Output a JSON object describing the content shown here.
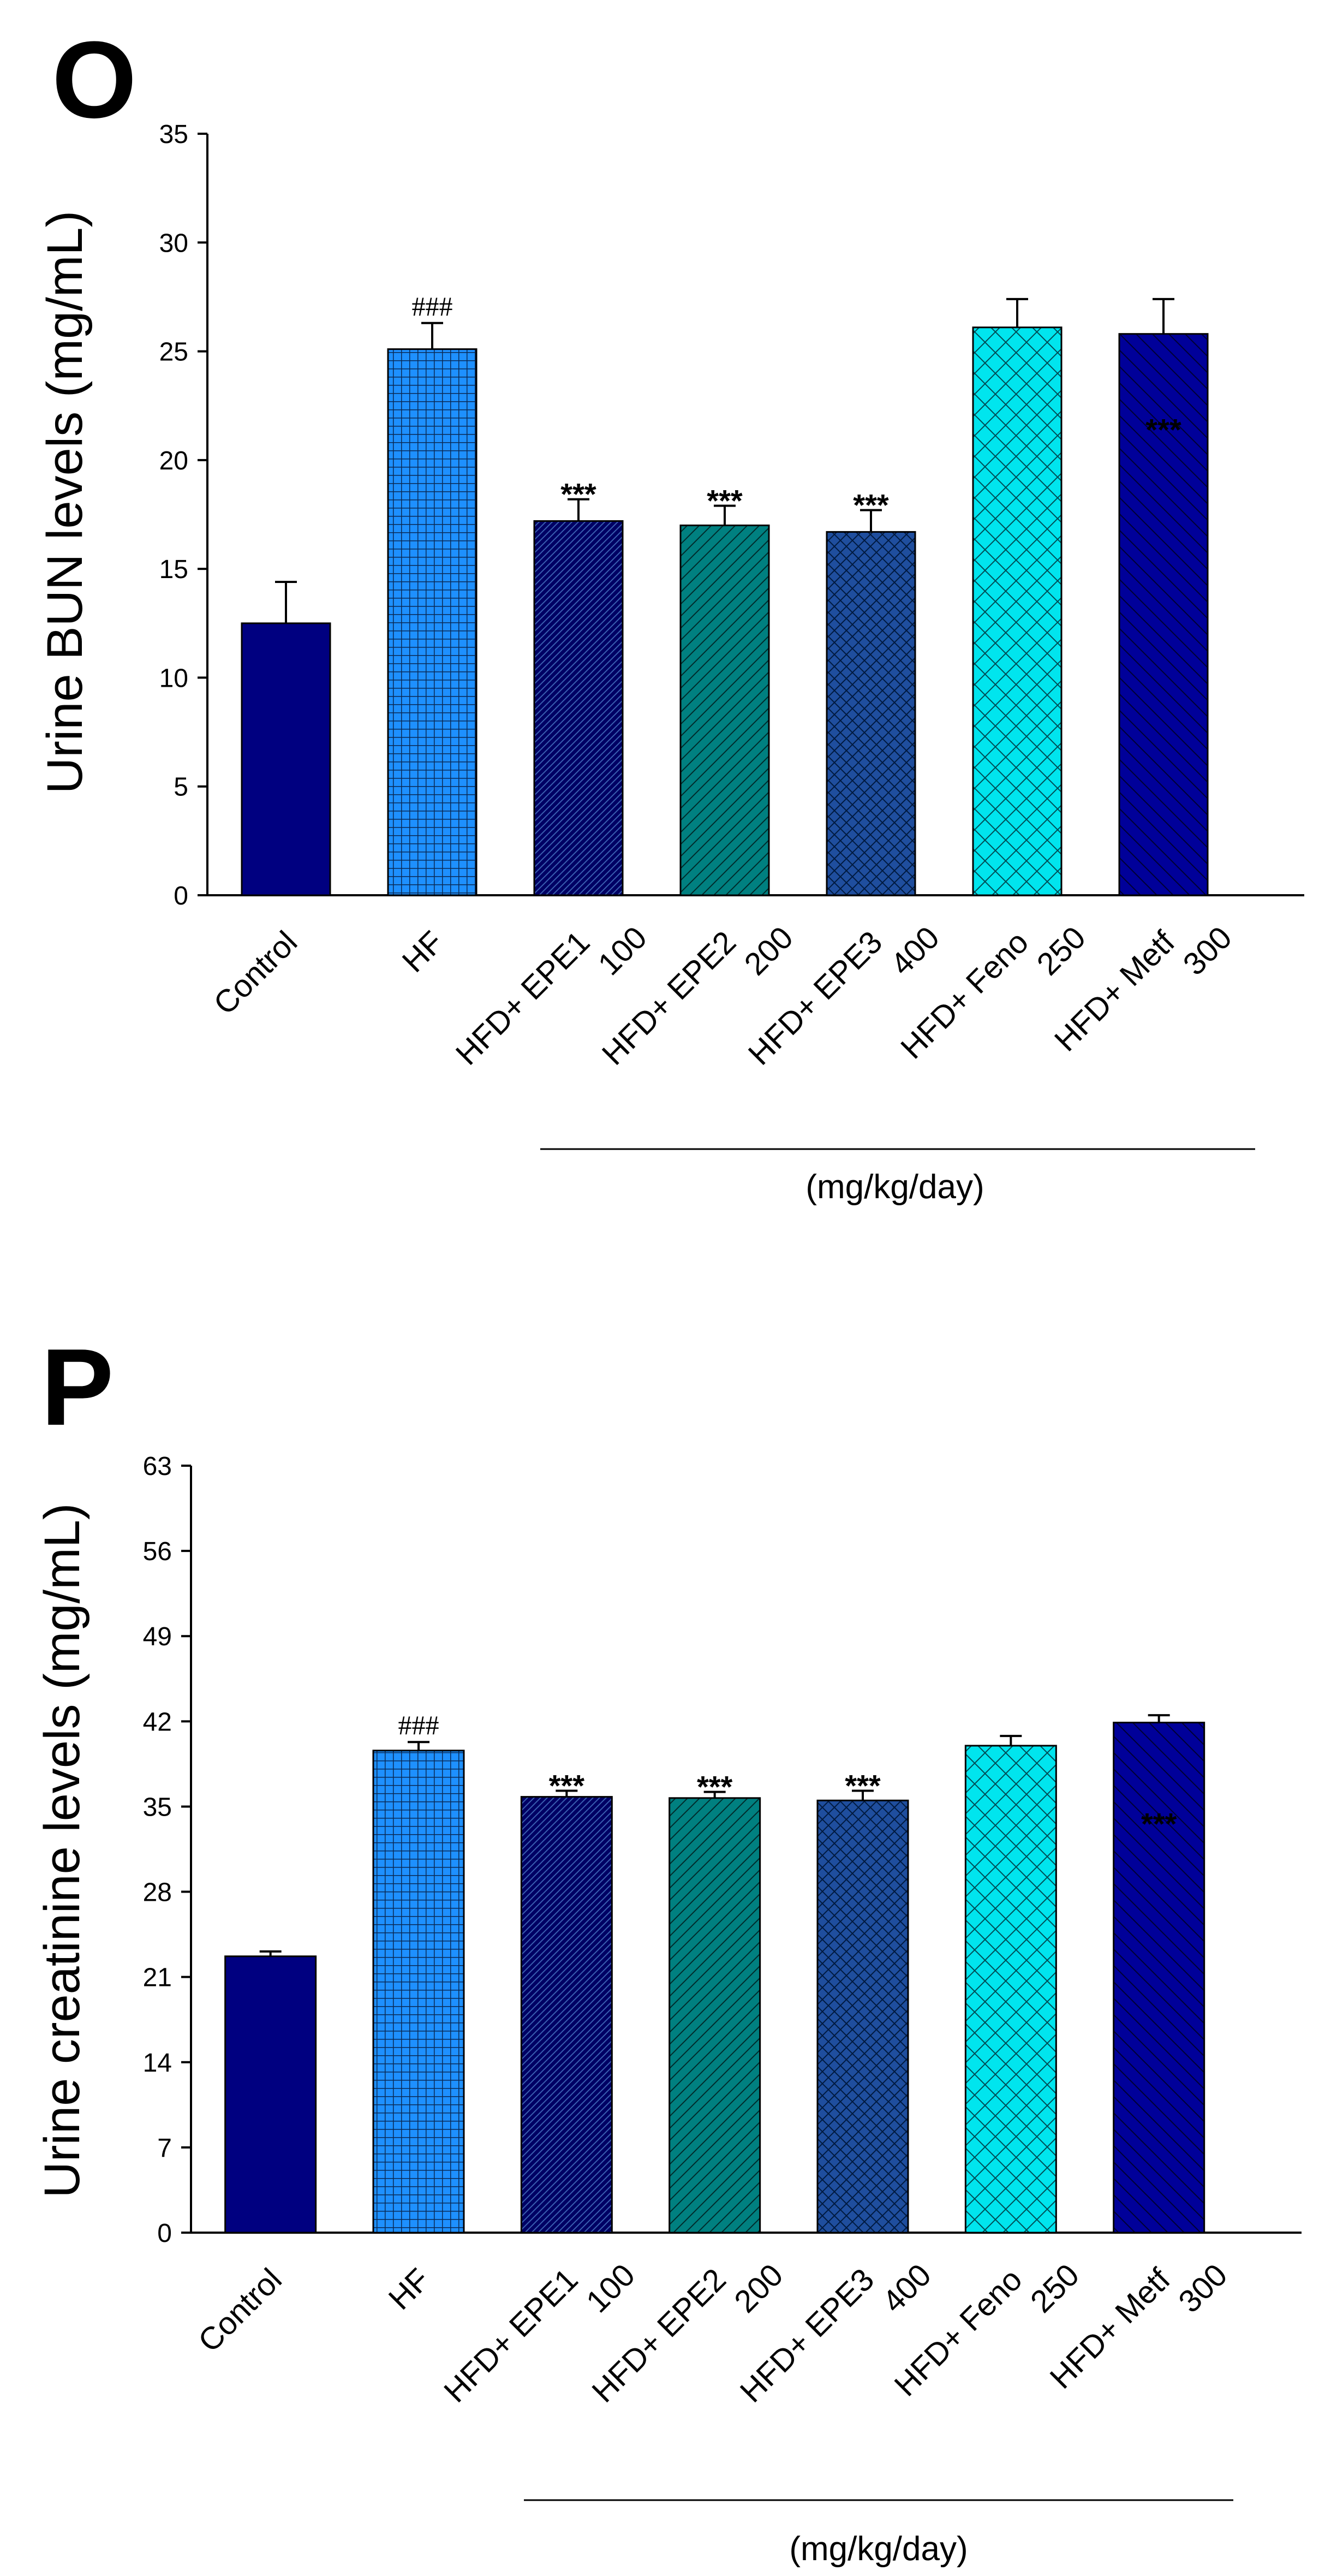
{
  "chart_data": [
    {
      "panel": "O",
      "type": "bar",
      "categories": [
        [
          "Control"
        ],
        [
          "HF"
        ],
        [
          "HFD+ EPE1",
          "100"
        ],
        [
          "HFD+ EPE2",
          "200"
        ],
        [
          "HFD+ EPE3",
          "400"
        ],
        [
          "HFD+ Feno",
          "250"
        ],
        [
          "HFD+ Metf",
          "300"
        ]
      ],
      "values": [
        12.5,
        25.1,
        17.2,
        17.0,
        16.7,
        26.1,
        25.8
      ],
      "errors": [
        1.9,
        1.2,
        1.0,
        0.9,
        1.0,
        1.3,
        1.6
      ],
      "annotations": [
        "",
        "###",
        "***",
        "***",
        "***",
        "",
        "***"
      ],
      "ylabel": "Urine BUN levels (mg/mL)",
      "xlabel": "(mg/kg/day)",
      "ylim": [
        0,
        35
      ],
      "yticks": [
        0,
        5,
        10,
        15,
        20,
        25,
        30,
        35
      ],
      "colors": [
        "#000080",
        "#1E90FF",
        "#000064",
        "#008080",
        "#1F4E9E",
        "#00E5EE",
        "#000099"
      ],
      "patterns": [
        "solid",
        "grid",
        "diag-dense",
        "diag-up",
        "crosshatch",
        "crosshatch-wide",
        "diag-down"
      ]
    },
    {
      "panel": "P",
      "type": "bar",
      "categories": [
        [
          "Control"
        ],
        [
          "HF"
        ],
        [
          "HFD+ EPE1",
          "100"
        ],
        [
          "HFD+ EPE2",
          "200"
        ],
        [
          "HFD+ EPE3",
          "400"
        ],
        [
          "HFD+ Feno",
          "250"
        ],
        [
          "HFD+ Metf",
          "300"
        ]
      ],
      "values": [
        22.7,
        39.6,
        35.8,
        35.7,
        35.5,
        40.0,
        41.9
      ],
      "errors": [
        0.4,
        0.7,
        0.5,
        0.5,
        0.8,
        0.8,
        0.6
      ],
      "annotations": [
        "",
        "###",
        "***",
        "***",
        "***",
        "",
        "***"
      ],
      "ylabel": "Urine creatinine levels (mg/mL)",
      "xlabel": "(mg/kg/day)",
      "ylim": [
        0,
        63
      ],
      "yticks": [
        0,
        7,
        14,
        21,
        28,
        35,
        42,
        49,
        56,
        63
      ],
      "colors": [
        "#000080",
        "#1E90FF",
        "#000064",
        "#008080",
        "#1F4E9E",
        "#00E5EE",
        "#000099"
      ],
      "patterns": [
        "solid",
        "grid",
        "diag-dense",
        "diag-up",
        "crosshatch",
        "crosshatch-wide",
        "diag-down"
      ]
    }
  ]
}
